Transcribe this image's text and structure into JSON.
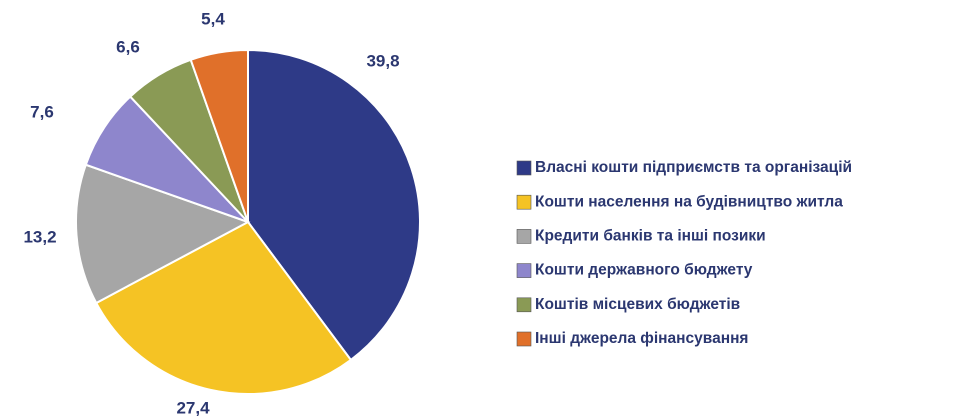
{
  "chart_data": {
    "type": "pie",
    "categories": [
      "Власні кошти підприємств та організацій",
      "Кошти населення на будівництво житла",
      "Кредити банків та інші позики",
      "Кошти державного бюджету",
      "Коштів місцевих бюджетів",
      "Інші джерела фінансування"
    ],
    "values": [
      39.8,
      27.4,
      13.2,
      7.6,
      6.6,
      5.4
    ],
    "value_labels": [
      "39,8",
      "27,4",
      "13,2",
      "7,6",
      "6,6",
      "5,4"
    ],
    "colors": [
      "#2e3a87",
      "#f5c324",
      "#a6a6a6",
      "#8e86cc",
      "#8a9a55",
      "#e0702a"
    ],
    "legend": "right"
  }
}
